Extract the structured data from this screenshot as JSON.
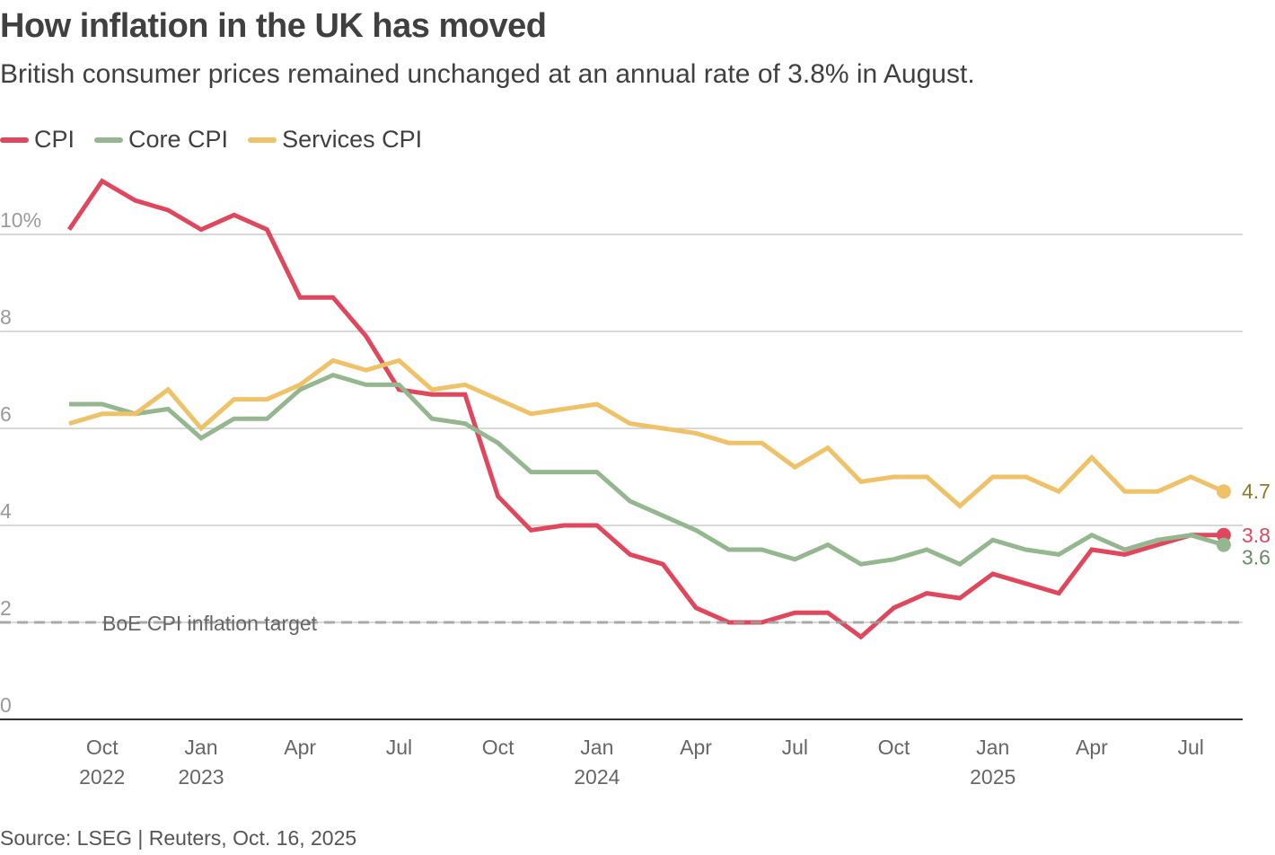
{
  "chart_data": {
    "type": "line",
    "title": "How inflation in the UK has moved",
    "subtitle": "British consumer prices remained unchanged at an annual rate of 3.8% in August.",
    "source": "Source: LSEG | Reuters, Oct. 16, 2025",
    "xlabel": "",
    "ylabel": "",
    "ylim": [
      0,
      10
    ],
    "yticks": [
      {
        "value": 0,
        "label": "0"
      },
      {
        "value": 2,
        "label": "2"
      },
      {
        "value": 4,
        "label": "4"
      },
      {
        "value": 6,
        "label": "6"
      },
      {
        "value": 8,
        "label": "8"
      },
      {
        "value": 10,
        "label": "10%"
      }
    ],
    "x": [
      "2022-09",
      "2022-10",
      "2022-11",
      "2022-12",
      "2023-01",
      "2023-02",
      "2023-03",
      "2023-04",
      "2023-05",
      "2023-06",
      "2023-07",
      "2023-08",
      "2023-09",
      "2023-10",
      "2023-11",
      "2023-12",
      "2024-01",
      "2024-02",
      "2024-03",
      "2024-04",
      "2024-05",
      "2024-06",
      "2024-07",
      "2024-08",
      "2024-09",
      "2024-10",
      "2024-11",
      "2024-12",
      "2025-01",
      "2025-02",
      "2025-03",
      "2025-04",
      "2025-05",
      "2025-06",
      "2025-07",
      "2025-08"
    ],
    "xticks": [
      {
        "index": 1,
        "label": "Oct",
        "sublabel": "2022"
      },
      {
        "index": 4,
        "label": "Jan",
        "sublabel": "2023"
      },
      {
        "index": 7,
        "label": "Apr",
        "sublabel": ""
      },
      {
        "index": 10,
        "label": "Jul",
        "sublabel": ""
      },
      {
        "index": 13,
        "label": "Oct",
        "sublabel": ""
      },
      {
        "index": 16,
        "label": "Jan",
        "sublabel": "2024"
      },
      {
        "index": 19,
        "label": "Apr",
        "sublabel": ""
      },
      {
        "index": 22,
        "label": "Jul",
        "sublabel": ""
      },
      {
        "index": 25,
        "label": "Oct",
        "sublabel": ""
      },
      {
        "index": 28,
        "label": "Jan",
        "sublabel": "2025"
      },
      {
        "index": 31,
        "label": "Apr",
        "sublabel": ""
      },
      {
        "index": 34,
        "label": "Jul",
        "sublabel": ""
      }
    ],
    "grid": true,
    "legend_position": "top-left",
    "series": [
      {
        "name": "CPI",
        "color": "#e0475d",
        "label_color": "#e0475d",
        "end_label": "3.8",
        "values": [
          10.1,
          11.1,
          10.7,
          10.5,
          10.1,
          10.4,
          10.1,
          8.7,
          8.7,
          7.9,
          6.8,
          6.7,
          6.7,
          4.6,
          3.9,
          4.0,
          4.0,
          3.4,
          3.2,
          2.3,
          2.0,
          2.0,
          2.2,
          2.2,
          1.7,
          2.3,
          2.6,
          2.5,
          3.0,
          2.8,
          2.6,
          3.5,
          3.4,
          3.6,
          3.8,
          3.8
        ]
      },
      {
        "name": "Core CPI",
        "color": "#95b78f",
        "label_color": "#6b8a66",
        "end_label": "3.6",
        "values": [
          6.5,
          6.5,
          6.3,
          6.4,
          5.8,
          6.2,
          6.2,
          6.8,
          7.1,
          6.9,
          6.9,
          6.2,
          6.1,
          5.7,
          5.1,
          5.1,
          5.1,
          4.5,
          4.2,
          3.9,
          3.5,
          3.5,
          3.3,
          3.6,
          3.2,
          3.3,
          3.5,
          3.2,
          3.7,
          3.5,
          3.4,
          3.8,
          3.5,
          3.7,
          3.8,
          3.6
        ]
      },
      {
        "name": "Services CPI",
        "color": "#efc268",
        "label_color": "#8c7a2c",
        "end_label": "4.7",
        "values": [
          6.1,
          6.3,
          6.3,
          6.8,
          6.0,
          6.6,
          6.6,
          6.9,
          7.4,
          7.2,
          7.4,
          6.8,
          6.9,
          6.6,
          6.3,
          6.4,
          6.5,
          6.1,
          6.0,
          5.9,
          5.7,
          5.7,
          5.2,
          5.6,
          4.9,
          5.0,
          5.0,
          4.4,
          5.0,
          5.0,
          4.7,
          5.4,
          4.7,
          4.7,
          5.0,
          4.7
        ]
      }
    ],
    "annotations": [
      {
        "type": "hline",
        "value": 2,
        "label": "BoE CPI inflation target",
        "style": "dashed",
        "color": "#a0a0a0"
      }
    ]
  }
}
